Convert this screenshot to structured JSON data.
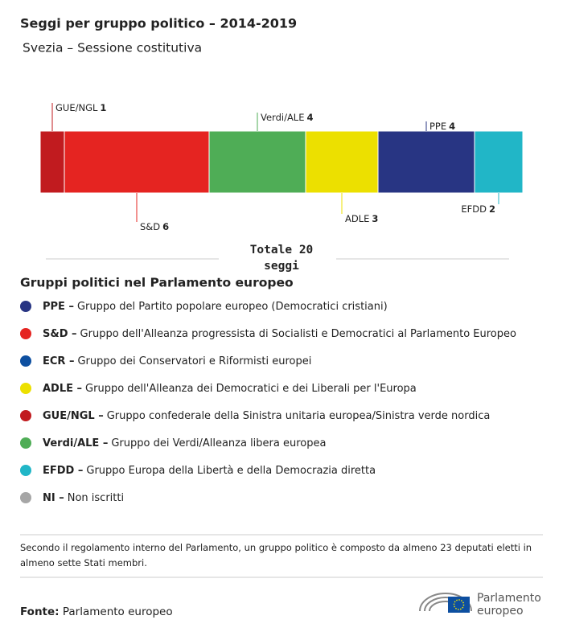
{
  "chart_data": {
    "type": "stacked_bar",
    "title": "Seggi per gruppo politico – 2014-2019",
    "subtitle": "Svezia – Sessione costitutiva",
    "series": [
      {
        "name": "GUE/NGL",
        "color": "#c11b1f",
        "values": [
          1
        ]
      },
      {
        "name": "S&D",
        "color": "#e52421",
        "values": [
          6
        ]
      },
      {
        "name": "Verdi/ALE",
        "color": "#4fad56",
        "values": [
          4
        ]
      },
      {
        "name": "ADLE",
        "color": "#ece000",
        "values": [
          3
        ]
      },
      {
        "name": "PPE",
        "color": "#283583",
        "values": [
          4
        ]
      },
      {
        "name": "EFDD",
        "color": "#21b6c7",
        "values": [
          2
        ]
      }
    ],
    "total_label": "Totale",
    "total": 20,
    "total_unit": "seggi"
  },
  "legend": {
    "title": "Gruppi politici nel Parlamento europeo",
    "items": [
      {
        "abbr": "PPE –",
        "text": "Gruppo del Partito popolare europeo (Democratici cristiani)",
        "color": "#283583"
      },
      {
        "abbr": "S&D –",
        "text": "Gruppo dell'Alleanza progressista di Socialisti e Democratici al Parlamento Europeo",
        "color": "#e52421"
      },
      {
        "abbr": "ECR –",
        "text": "Gruppo dei Conservatori e Riformisti europei",
        "color": "#0d4fa0"
      },
      {
        "abbr": "ADLE –",
        "text": "Gruppo dell'Alleanza dei Democratici e dei Liberali per l'Europa",
        "color": "#ece000"
      },
      {
        "abbr": "GUE/NGL –",
        "text": "Gruppo confederale della Sinistra unitaria europea/Sinistra verde nordica",
        "color": "#c11b1f"
      },
      {
        "abbr": "Verdi/ALE –",
        "text": "Gruppo dei Verdi/Alleanza libera europea",
        "color": "#4fad56"
      },
      {
        "abbr": "EFDD –",
        "text": "Gruppo Europa della Libertà e della Democrazia diretta",
        "color": "#21b6c7"
      },
      {
        "abbr": "NI –",
        "text": "Non iscritti",
        "color": "#a6a6a6"
      }
    ]
  },
  "note": "Secondo il regolamento interno del Parlamento, un gruppo politico è composto da almeno 23 deputati eletti in almeno sette Stati membri.",
  "source": {
    "label": "Fonte:",
    "text": "Parlamento europeo"
  },
  "logo": [
    "Parlamento",
    "europeo"
  ]
}
